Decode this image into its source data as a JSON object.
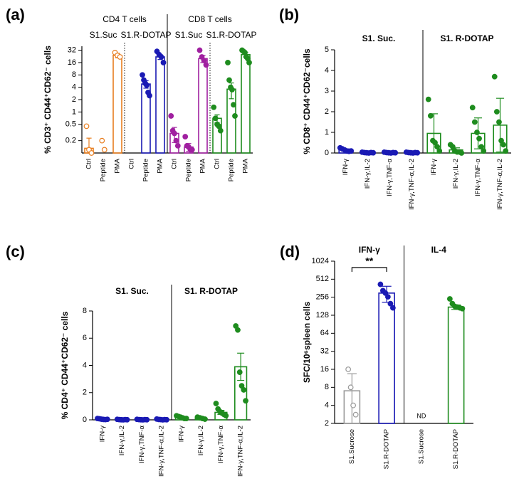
{
  "chart_data": [
    {
      "type": "bar",
      "label": "(a)",
      "yscale": "log",
      "y_label": "% CD3⁺ CD44⁺CD62⁻ cells",
      "group_labels": [
        "CD4 T cells",
        "CD8 T cells"
      ],
      "subgroup_labels": [
        "S1.Suc",
        "S1.R-DOTAP",
        "S1.Suc",
        "S1.R-DOTAP"
      ],
      "categories": [
        "Ctrl",
        "Peptide",
        "PMA",
        "Ctrl",
        "Peptide",
        "PMA",
        "Ctrl",
        "Peptide",
        "PMA",
        "Ctrl",
        "Peptide",
        "PMA"
      ],
      "colors": [
        "#e87d1e",
        "#e87d1e",
        "#e87d1e",
        "#1a1ab4",
        "#1a1ab4",
        "#1a1ab4",
        "#a020a0",
        "#a020a0",
        "#a020a0",
        "#1e8c1e",
        "#1e8c1e",
        "#1e8c1e"
      ],
      "point_fills": [
        "#ffffff",
        "#ffffff",
        "#ffffff",
        "#1a1ab4",
        "#1a1ab4",
        "#1a1ab4",
        "#a020a0",
        "#a020a0",
        "#a020a0",
        "#1e8c1e",
        "#1e8c1e",
        "#1e8c1e"
      ],
      "values": [
        0.13,
        null,
        24,
        null,
        4.8,
        22,
        0.3,
        0.14,
        20,
        0.7,
        3.6,
        25
      ],
      "errors": [
        0.1,
        null,
        3,
        null,
        1,
        3,
        0.12,
        0.03,
        4,
        0.15,
        1.5,
        3
      ],
      "points": [
        [
          0.45,
          0.12,
          0.1
        ],
        [
          0.2,
          0.12
        ],
        [
          28,
          24,
          22
        ],
        [],
        [
          8,
          6,
          5,
          4.5,
          3,
          2.5
        ],
        [
          30,
          25,
          22,
          16
        ],
        [
          0.8,
          0.35,
          0.3,
          0.2,
          0.15
        ],
        [
          0.25,
          0.15,
          0.14,
          0.12,
          0.12
        ],
        [
          32,
          22,
          18,
          14
        ],
        [
          1.3,
          0.7,
          0.5,
          0.45,
          0.35
        ],
        [
          16,
          6,
          4,
          3.5,
          1.5,
          0.8
        ],
        [
          32,
          30,
          28,
          22,
          20,
          16
        ]
      ],
      "ylim": [
        0.1,
        40
      ],
      "yticks": [
        0.2,
        0.5,
        1,
        2,
        4,
        8,
        16,
        32
      ]
    },
    {
      "type": "bar",
      "label": "(b)",
      "yscale": "linear",
      "y_label": "% CD8⁺ CD44⁺CD62⁻cells",
      "group_labels": [
        "S1. Suc.",
        "S1. R-DOTAP"
      ],
      "categories": [
        "IFN-γ",
        "IFN-γ,IL-2",
        "IFN-γ,TNF-α",
        "IFN-γ,TNF-α,IL-2",
        "IFN-γ",
        "IFN-γ,IL-2",
        "IFN-γ,TNF-α",
        "IFN-γ,TNF-α,IL-2"
      ],
      "colors": [
        "#1a1ab4",
        "#1a1ab4",
        "#1a1ab4",
        "#1a1ab4",
        "#1e8c1e",
        "#1e8c1e",
        "#1e8c1e",
        "#1e8c1e"
      ],
      "point_fills": [
        "#1a1ab4",
        "#1a1ab4",
        "#1a1ab4",
        "#1a1ab4",
        "#1e8c1e",
        "#1e8c1e",
        "#1e8c1e",
        "#1e8c1e"
      ],
      "values": [
        0.15,
        0.02,
        0.02,
        0.02,
        0.95,
        0.15,
        0.95,
        1.35
      ],
      "errors": [
        0.05,
        0.02,
        0.02,
        0.02,
        0.95,
        0.1,
        0.75,
        1.3
      ],
      "points": [
        [
          0.25,
          0.2,
          0.15,
          0.1,
          0.08,
          0.1
        ],
        [
          0.04,
          0.02,
          0.01,
          0,
          0.02,
          0.01
        ],
        [
          0.04,
          0.02,
          0.01,
          0,
          0.02,
          0.01
        ],
        [
          0.04,
          0.02,
          0.01,
          0,
          0.02,
          0.01
        ],
        [
          2.6,
          1.8,
          0.6,
          0.5,
          0.3,
          0.1
        ],
        [
          0.4,
          0.3,
          0.1,
          0.05,
          0.05,
          0
        ],
        [
          2.2,
          1.5,
          1,
          0.7,
          0.3,
          0.1
        ],
        [
          3.7,
          2,
          1.5,
          0.6,
          0.4,
          0.1
        ]
      ],
      "ylim": [
        0,
        5
      ],
      "yticks": [
        0,
        1,
        2,
        3,
        4,
        5
      ]
    },
    {
      "type": "bar",
      "label": "(c)",
      "yscale": "linear",
      "y_label": "% CD4⁺ CD44⁺CD62⁻ cells",
      "group_labels": [
        "S1. Suc.",
        "S1. R-DOTAP"
      ],
      "categories": [
        "IFN-γ",
        "IFN-γ,IL-2",
        "IFN-γ,TNF-α",
        "IFN-γ,TNF-α,IL-2",
        "IFN-γ",
        "IFN-γ,IL-2",
        "IFN-γ,TNF-α",
        "IFN-γ,TNF-α,IL-2"
      ],
      "colors": [
        "#1a1ab4",
        "#1a1ab4",
        "#1a1ab4",
        "#1a1ab4",
        "#1e8c1e",
        "#1e8c1e",
        "#1e8c1e",
        "#1e8c1e"
      ],
      "point_fills": [
        "#1a1ab4",
        "#1a1ab4",
        "#1a1ab4",
        "#1a1ab4",
        "#1e8c1e",
        "#1e8c1e",
        "#1e8c1e",
        "#1e8c1e"
      ],
      "values": [
        0.05,
        0.02,
        0.02,
        0.02,
        0.2,
        0.1,
        0.55,
        3.9
      ],
      "errors": [
        0.03,
        0.02,
        0.02,
        0.02,
        0.05,
        0.04,
        0.15,
        1
      ],
      "points": [
        [
          0.1,
          0.08,
          0.05,
          0.03,
          0.02,
          0.04
        ],
        [
          0.04,
          0.02,
          0.01,
          0,
          0.02,
          0.01
        ],
        [
          0.04,
          0.02,
          0.01,
          0,
          0.02,
          0.01
        ],
        [
          0.06,
          0.03,
          0.02,
          0,
          0.02,
          0.01
        ],
        [
          0.3,
          0.25,
          0.2,
          0.15,
          0.1,
          0.1
        ],
        [
          0.2,
          0.15,
          0.1,
          0.05
        ],
        [
          1.2,
          0.8,
          0.6,
          0.5,
          0.4,
          0.3
        ],
        [
          6.9,
          6.6,
          3.5,
          2.5,
          2.2,
          1.4
        ]
      ],
      "ylim": [
        0,
        8
      ],
      "yticks": [
        0,
        2,
        4,
        6,
        8
      ]
    },
    {
      "type": "bar",
      "label": "(d)",
      "yscale": "log",
      "y_label": "SFC/10⁶spleen cells",
      "group_labels": [
        "IFN-γ",
        "IL-4"
      ],
      "categories": [
        "S1.Sucrose",
        "S1.R-DOTAP",
        "S1.Sucrose",
        "S1.R-DOTAP"
      ],
      "colors": [
        "#999999",
        "#1a1ab4",
        "#999999",
        "#1e8c1e"
      ],
      "point_fills": [
        "#ffffff",
        "#1a1ab4",
        "#ffffff",
        "#1e8c1e"
      ],
      "values": [
        7,
        300,
        null,
        175
      ],
      "errors": [
        6.5,
        90,
        null,
        15
      ],
      "points": [
        [
          16,
          8,
          4,
          2.8
        ],
        [
          420,
          330,
          300,
          260,
          200,
          170
        ],
        [],
        [
          240,
          200,
          180,
          175,
          170,
          165
        ]
      ],
      "annotations": [
        "**",
        "ND"
      ],
      "ylim": [
        2,
        1024
      ],
      "yticks": [
        2,
        4,
        8,
        16,
        32,
        64,
        128,
        256,
        512,
        1024
      ]
    }
  ]
}
